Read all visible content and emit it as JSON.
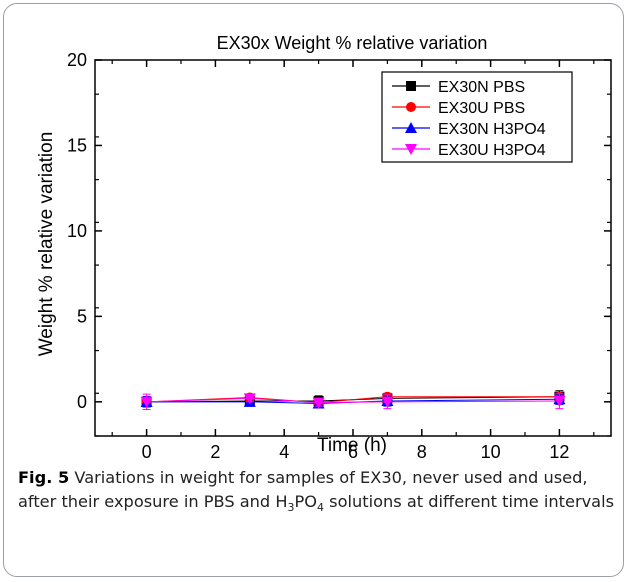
{
  "chart_data": {
    "type": "line",
    "title": "EX30x Weight % relative variation",
    "xlabel": "Time (h)",
    "ylabel": "Weight % relative variation",
    "xlim": [
      -1.5,
      13.5
    ],
    "ylim": [
      -2,
      20
    ],
    "xticks": [
      0,
      2,
      4,
      6,
      8,
      10,
      12
    ],
    "yticks": [
      0,
      5,
      10,
      15,
      20
    ],
    "x": [
      0,
      3,
      5,
      7,
      12
    ],
    "legend_position": "top-right",
    "series": [
      {
        "name": "EX30N PBS",
        "color": "#000000",
        "marker": "square",
        "values": [
          0.0,
          0.05,
          0.05,
          0.2,
          0.3
        ],
        "errors": [
          0.3,
          0.2,
          0.3,
          0.2,
          0.35
        ]
      },
      {
        "name": "EX30U PBS",
        "color": "#ff0000",
        "marker": "circle",
        "values": [
          0.0,
          0.25,
          -0.05,
          0.3,
          0.3
        ],
        "errors": [
          0.2,
          0.2,
          0.2,
          0.2,
          0.2
        ]
      },
      {
        "name": "EX30N H3PO4",
        "color": "#0000ff",
        "marker": "triangle-up",
        "values": [
          0.0,
          0.0,
          -0.1,
          0.05,
          0.15
        ],
        "errors": [
          0.3,
          0.25,
          0.2,
          0.3,
          0.3
        ]
      },
      {
        "name": "EX30U H3PO4",
        "color": "#ff00ff",
        "marker": "triangle-down",
        "values": [
          0.0,
          0.2,
          -0.05,
          0.0,
          0.05
        ],
        "errors": [
          0.45,
          0.2,
          0.2,
          0.4,
          0.45
        ]
      }
    ]
  },
  "caption": {
    "label": "Fig. 5",
    "text_part1": "Variations in weight for samples of EX30, never used and used, after their exposure in PBS and H",
    "sub1": "3",
    "text_part2": "PO",
    "sub2": "4",
    "text_part3": " solutions at different time intervals"
  }
}
